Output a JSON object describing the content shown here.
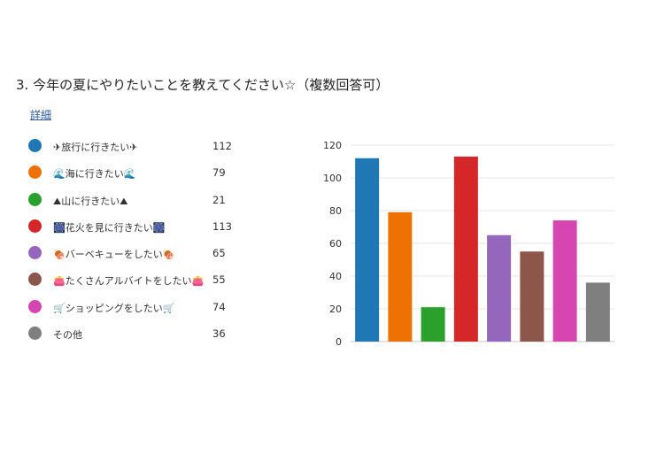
{
  "question": {
    "title": "3.  今年の夏にやりたいことを教えてください☆（複数回答可）",
    "details_link": "詳細"
  },
  "legend": [
    {
      "label": "✈旅行に行きたい✈",
      "count": "112",
      "color": "#1f77b4"
    },
    {
      "label": "🌊海に行きたい🌊",
      "count": "79",
      "color": "#ee7203"
    },
    {
      "label": "⛰山に行きたい⛰",
      "count": "21",
      "color": "#2ca02c"
    },
    {
      "label": "🎆花火を見に行きたい🎆",
      "count": "113",
      "color": "#d62728"
    },
    {
      "label": "🍖バーベキューをしたい🍖",
      "count": "65",
      "color": "#9467bd"
    },
    {
      "label": "👛たくさんアルバイトをしたい👛",
      "count": "55",
      "color": "#8c564b"
    },
    {
      "label": "🛒ショッピングをしたい🛒",
      "count": "74",
      "color": "#d546b0"
    },
    {
      "label": "その他",
      "count": "36",
      "color": "#7f7f7f"
    }
  ],
  "chart_data": {
    "type": "bar",
    "categories": [
      "✈旅行に行きたい✈",
      "🌊海に行きたい🌊",
      "⛰山に行きたい⛰",
      "🎆花火を見に行きたい🎆",
      "🍖バーベキューをしたい🍖",
      "👛たくさんアルバイトをしたい👛",
      "🛒ショッピングをしたい🛒",
      "その他"
    ],
    "values": [
      112,
      79,
      21,
      113,
      65,
      55,
      74,
      36
    ],
    "colors": [
      "#1f77b4",
      "#ee7203",
      "#2ca02c",
      "#d62728",
      "#9467bd",
      "#8c564b",
      "#d546b0",
      "#7f7f7f"
    ],
    "ylim": [
      0,
      120
    ],
    "yticks": [
      0,
      20,
      40,
      60,
      80,
      100,
      120
    ],
    "grid": true,
    "legend_placement": "left"
  }
}
